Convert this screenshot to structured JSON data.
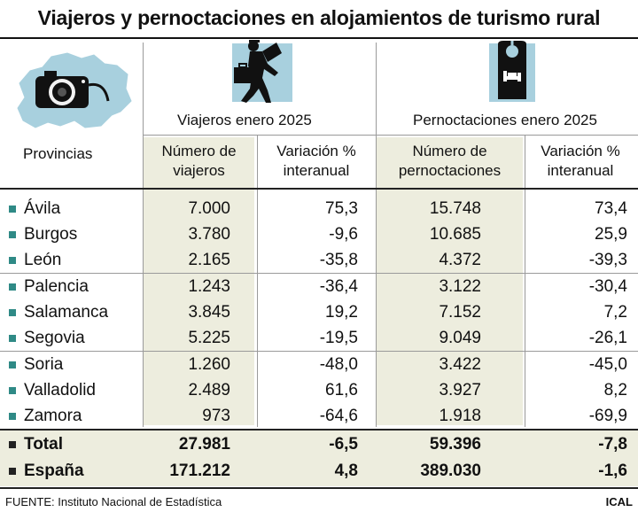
{
  "title": "Viajeros y pernoctaciones en alojamientos de turismo rural",
  "header": {
    "provincias": "Provincias",
    "group_viajeros": "Viajeros enero 2025",
    "group_pernoctaciones": "Pernoctaciones enero 2025",
    "col_num_viajeros": [
      "Número de",
      "viajeros"
    ],
    "col_var_viajeros": [
      "Variación %",
      "interanual"
    ],
    "col_num_pernoct": [
      "Número de",
      "pernoctaciones"
    ],
    "col_var_pernoct": [
      "Variación %",
      "interanual"
    ]
  },
  "rows": [
    {
      "provincia": "Ávila",
      "viajeros": "7.000",
      "var_viajeros": "75,3",
      "pernoctaciones": "15.748",
      "var_pernoct": "73,4"
    },
    {
      "provincia": "Burgos",
      "viajeros": "3.780",
      "var_viajeros": "-9,6",
      "pernoctaciones": "10.685",
      "var_pernoct": "25,9"
    },
    {
      "provincia": "León",
      "viajeros": "2.165",
      "var_viajeros": "-35,8",
      "pernoctaciones": "4.372",
      "var_pernoct": "-39,3"
    },
    {
      "provincia": "Palencia",
      "viajeros": "1.243",
      "var_viajeros": "-36,4",
      "pernoctaciones": "3.122",
      "var_pernoct": "-30,4"
    },
    {
      "provincia": "Salamanca",
      "viajeros": "3.845",
      "var_viajeros": "19,2",
      "pernoctaciones": "7.152",
      "var_pernoct": "7,2"
    },
    {
      "provincia": "Segovia",
      "viajeros": "5.225",
      "var_viajeros": "-19,5",
      "pernoctaciones": "9.049",
      "var_pernoct": "-26,1"
    },
    {
      "provincia": "Soria",
      "viajeros": "1.260",
      "var_viajeros": "-48,0",
      "pernoctaciones": "3.422",
      "var_pernoct": "-45,0"
    },
    {
      "provincia": "Valladolid",
      "viajeros": "2.489",
      "var_viajeros": "61,6",
      "pernoctaciones": "3.927",
      "var_pernoct": "8,2"
    },
    {
      "provincia": "Zamora",
      "viajeros": "973",
      "var_viajeros": "-64,6",
      "pernoctaciones": "1.918",
      "var_pernoct": "-69,9"
    }
  ],
  "totals": [
    {
      "provincia": "Total",
      "viajeros": "27.981",
      "var_viajeros": "-6,5",
      "pernoctaciones": "59.396",
      "var_pernoct": "-7,8"
    },
    {
      "provincia": "España",
      "viajeros": "171.212",
      "var_viajeros": "4,8",
      "pernoctaciones": "389.030",
      "var_pernoct": "-1,6"
    }
  ],
  "footer": {
    "source_label": "FUENTE:",
    "source_text": " Instituto Nacional de Estadística",
    "agency": "ICAL"
  },
  "colors": {
    "accent_bullet": "#2f8a86",
    "map_fill": "#a8d0de",
    "shade": "#ededde"
  },
  "icons": [
    "camera-map-icon",
    "traveler-icon",
    "do-not-disturb-hanger-icon"
  ]
}
